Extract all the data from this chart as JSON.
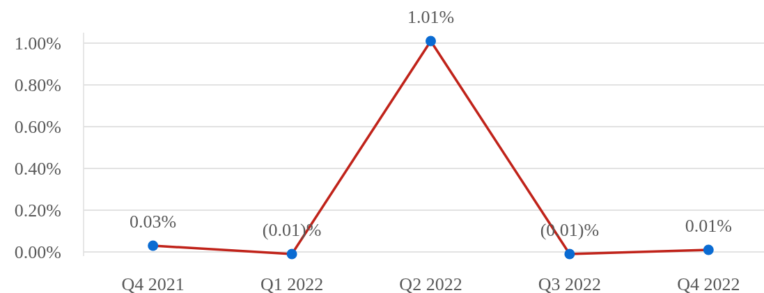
{
  "chart_data": {
    "type": "line",
    "categories": [
      "Q4 2021",
      "Q1 2022",
      "Q2 2022",
      "Q3 2022",
      "Q4 2022"
    ],
    "series": [
      {
        "color": "#c0231a",
        "colors": [
          "#0a6bd2",
          "#0a6bd2",
          "#0a6bd2",
          "#0a6bd2",
          "#0a6bd2"
        ],
        "values": [
          0.03,
          -0.01,
          1.01,
          -0.01,
          0.01
        ],
        "value_labels": [
          "0.03%",
          "(0.01)%",
          "1.01%",
          "(0.01)%",
          "0.01%"
        ]
      }
    ],
    "ylim": [
      -0.02,
      1.05
    ],
    "yticks": [
      {
        "value": 0,
        "label": "0.00%"
      },
      {
        "value": 0.2,
        "label": "0.20%"
      },
      {
        "value": 0.4,
        "label": "0.40%"
      },
      {
        "value": 0.6,
        "label": "0.60%"
      },
      {
        "value": 0.8,
        "label": "0.80%"
      },
      {
        "value": 1,
        "label": "1.00%"
      }
    ],
    "grid": "y",
    "marker": "circle",
    "line_style": "solid"
  }
}
